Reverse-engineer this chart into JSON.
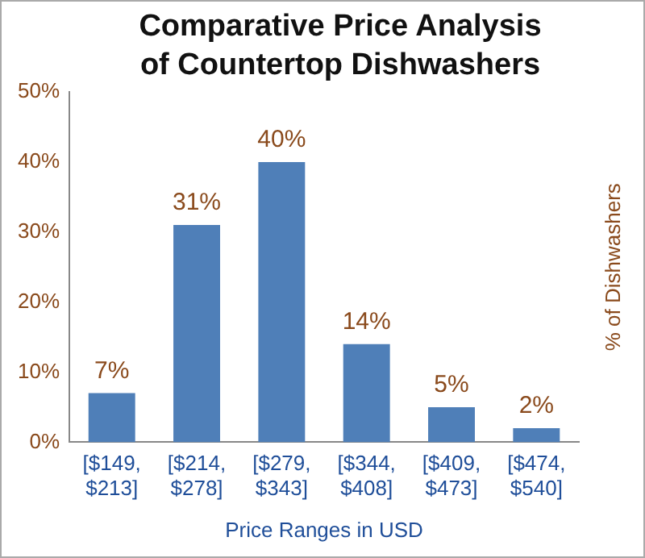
{
  "chart_data": {
    "type": "bar",
    "title": "Comparative Price Analysis of Countertop Dishwashers",
    "xlabel": "Price Ranges in USD",
    "ylabel": "% of Dishwashers",
    "categories": [
      "[$149, $213]",
      "[$214, $278]",
      "[$279, $343]",
      "[$344, $408]",
      "[$409, $473]",
      "[$474, $540]"
    ],
    "values": [
      7,
      31,
      40,
      14,
      5,
      2
    ],
    "color": "#4f7fb8",
    "value_labels": [
      "7%",
      "31%",
      "40%",
      "14%",
      "5%",
      "2%"
    ],
    "ylim": [
      0,
      50
    ],
    "yticks": [
      {
        "value": 0,
        "label": "0%"
      },
      {
        "value": 10,
        "label": "10%"
      },
      {
        "value": 20,
        "label": "20%"
      },
      {
        "value": 30,
        "label": "30%"
      },
      {
        "value": 40,
        "label": "40%"
      },
      {
        "value": 50,
        "label": "50%"
      }
    ],
    "grid": false,
    "legend": false
  }
}
